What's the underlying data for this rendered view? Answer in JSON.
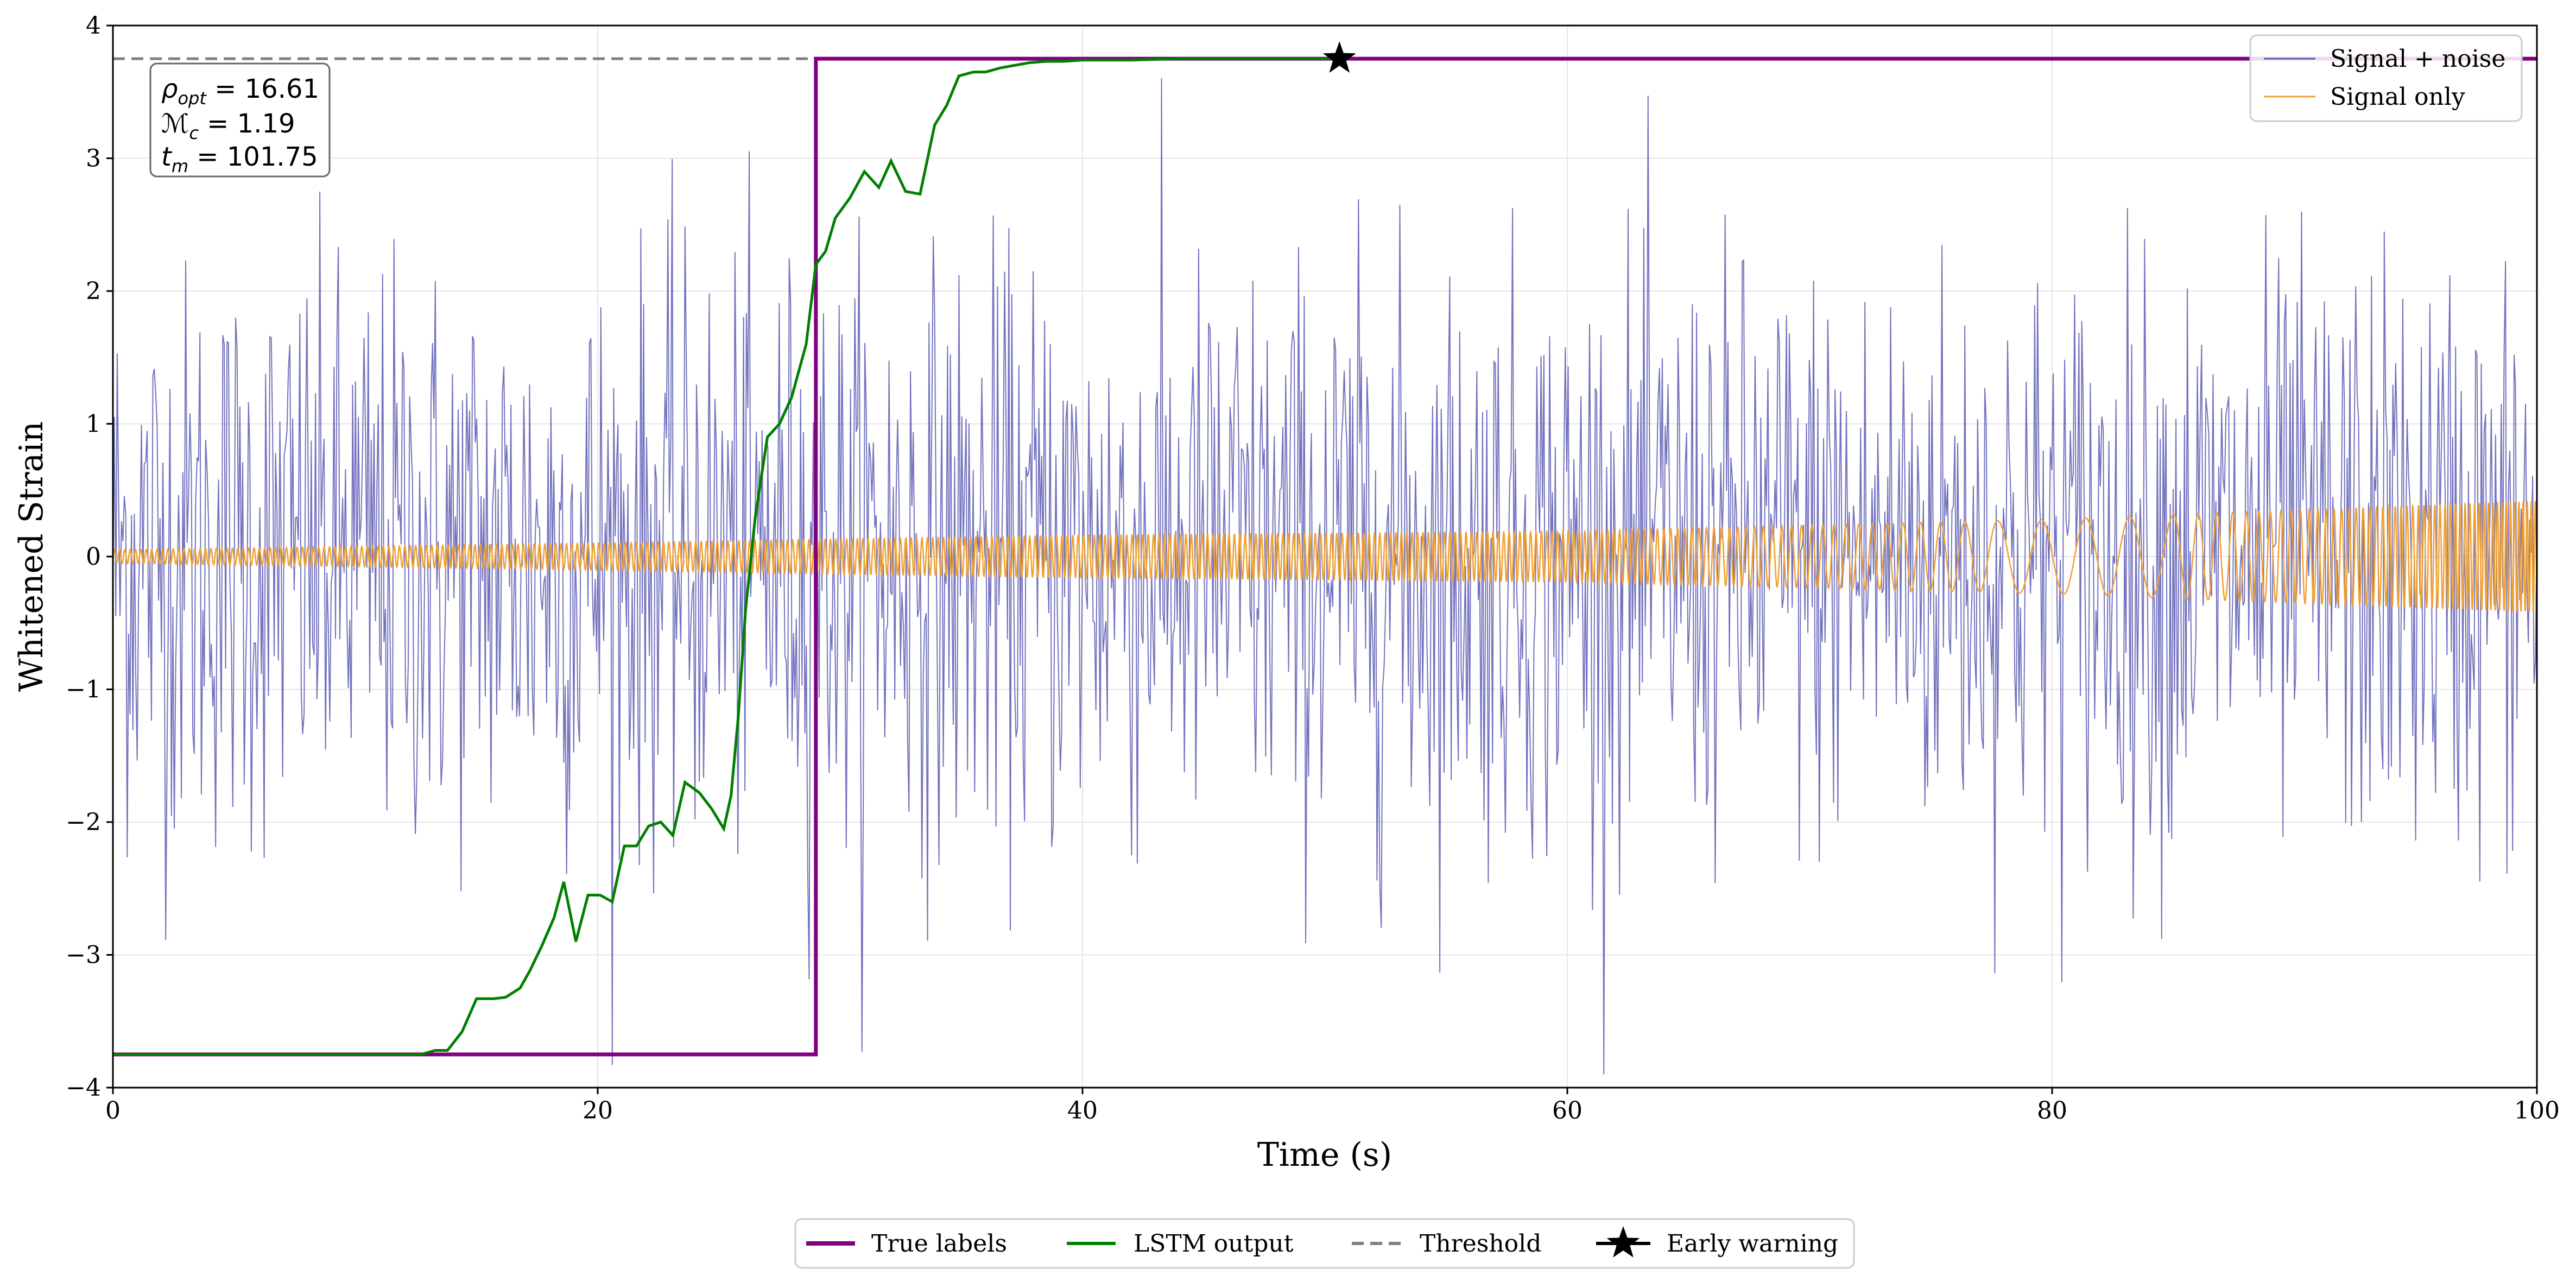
{
  "chart_data": {
    "type": "line",
    "xlabel": "Time (s)",
    "ylabel": "Whitened Strain",
    "xlim": [
      0,
      100
    ],
    "ylim": [
      -4,
      4
    ],
    "xticks": [
      0,
      20,
      40,
      60,
      80,
      100
    ],
    "yticks": [
      -4,
      -3,
      -2,
      -1,
      0,
      1,
      2,
      3,
      4
    ],
    "xtick_labels": [
      "0",
      "20",
      "40",
      "60",
      "80",
      "100"
    ],
    "ytick_labels": [
      "−4",
      "−3",
      "−2",
      "−1",
      "0",
      "1",
      "2",
      "3",
      "4"
    ],
    "grid": true,
    "annotation": {
      "rho_label": "ρ",
      "rho_sub": "opt",
      "rho_value": " = 16.61",
      "mc_label": "ℳ",
      "mc_sub": "c",
      "mc_value": " = 1.19",
      "tm_label": "t",
      "tm_sub": "m",
      "tm_value": " = 101.75"
    },
    "colors": {
      "noise": "#5a5ab4",
      "signal": "#f0a030",
      "true_labels": "#800080",
      "lstm": "#008000",
      "threshold": "#808080",
      "early_warning": "#000000"
    },
    "series": [
      {
        "name": "Signal + noise",
        "kind": "noise-trace",
        "n_points": 1700,
        "std": 1.1,
        "clip": [
          -3.9,
          3.95
        ],
        "notes": "dense random whitened-strain trace spanning 0-100 s"
      },
      {
        "name": "Signal only",
        "kind": "chirp",
        "amp_points": {
          "t": [
            0,
            20,
            40,
            60,
            80,
            100
          ],
          "amp": [
            0.05,
            0.1,
            0.16,
            0.19,
            0.28,
            0.42
          ]
        },
        "notes": "low-amplitude oscillation, frequency varies, grows toward 100 s"
      },
      {
        "name": "True labels",
        "kind": "step",
        "x": [
          0,
          29,
          29,
          100
        ],
        "y": [
          -3.75,
          -3.75,
          3.75,
          3.75
        ]
      },
      {
        "name": "LSTM output",
        "kind": "line",
        "x": [
          0,
          12,
          12.7,
          13.3,
          13.8,
          14.4,
          15.0,
          15.7,
          16.2,
          16.8,
          17.2,
          17.7,
          18.2,
          18.6,
          19.1,
          19.6,
          20.1,
          20.6,
          21.1,
          21.6,
          22.1,
          22.6,
          23.1,
          23.6,
          24.2,
          24.7,
          25.2,
          25.5,
          25.8,
          26.1,
          26.5,
          27.0,
          27.5,
          28.0,
          28.6,
          29.0,
          29.4,
          29.8,
          30.4,
          31.0,
          31.6,
          32.1,
          32.7,
          33.3,
          33.9,
          34.4,
          34.9,
          35.5,
          36.0,
          36.6,
          37.2,
          37.8,
          38.5,
          39.2,
          40.0,
          42.0,
          44.0,
          46.0,
          48.0,
          50.6
        ],
        "y": [
          -3.75,
          -3.75,
          -3.75,
          -3.72,
          -3.72,
          -3.58,
          -3.33,
          -3.33,
          -3.32,
          -3.25,
          -3.12,
          -2.93,
          -2.72,
          -2.45,
          -2.9,
          -2.55,
          -2.55,
          -2.6,
          -2.18,
          -2.18,
          -2.03,
          -2.0,
          -2.1,
          -1.7,
          -1.78,
          -1.9,
          -2.05,
          -1.8,
          -1.2,
          -0.4,
          0.3,
          0.9,
          1.0,
          1.2,
          1.6,
          2.2,
          2.3,
          2.55,
          2.7,
          2.9,
          2.78,
          2.98,
          2.75,
          2.73,
          3.25,
          3.4,
          3.62,
          3.65,
          3.65,
          3.68,
          3.7,
          3.72,
          3.73,
          3.73,
          3.74,
          3.74,
          3.75,
          3.75,
          3.75,
          3.75
        ]
      },
      {
        "name": "Threshold",
        "kind": "hline",
        "y": 3.75
      },
      {
        "name": "Early warning",
        "kind": "marker",
        "x": 50.6,
        "y": 3.75
      }
    ],
    "legend_top_right": [
      "Signal + noise",
      "Signal only"
    ],
    "legend_bottom": [
      "True labels",
      "LSTM output",
      "Threshold",
      "Early warning"
    ]
  }
}
